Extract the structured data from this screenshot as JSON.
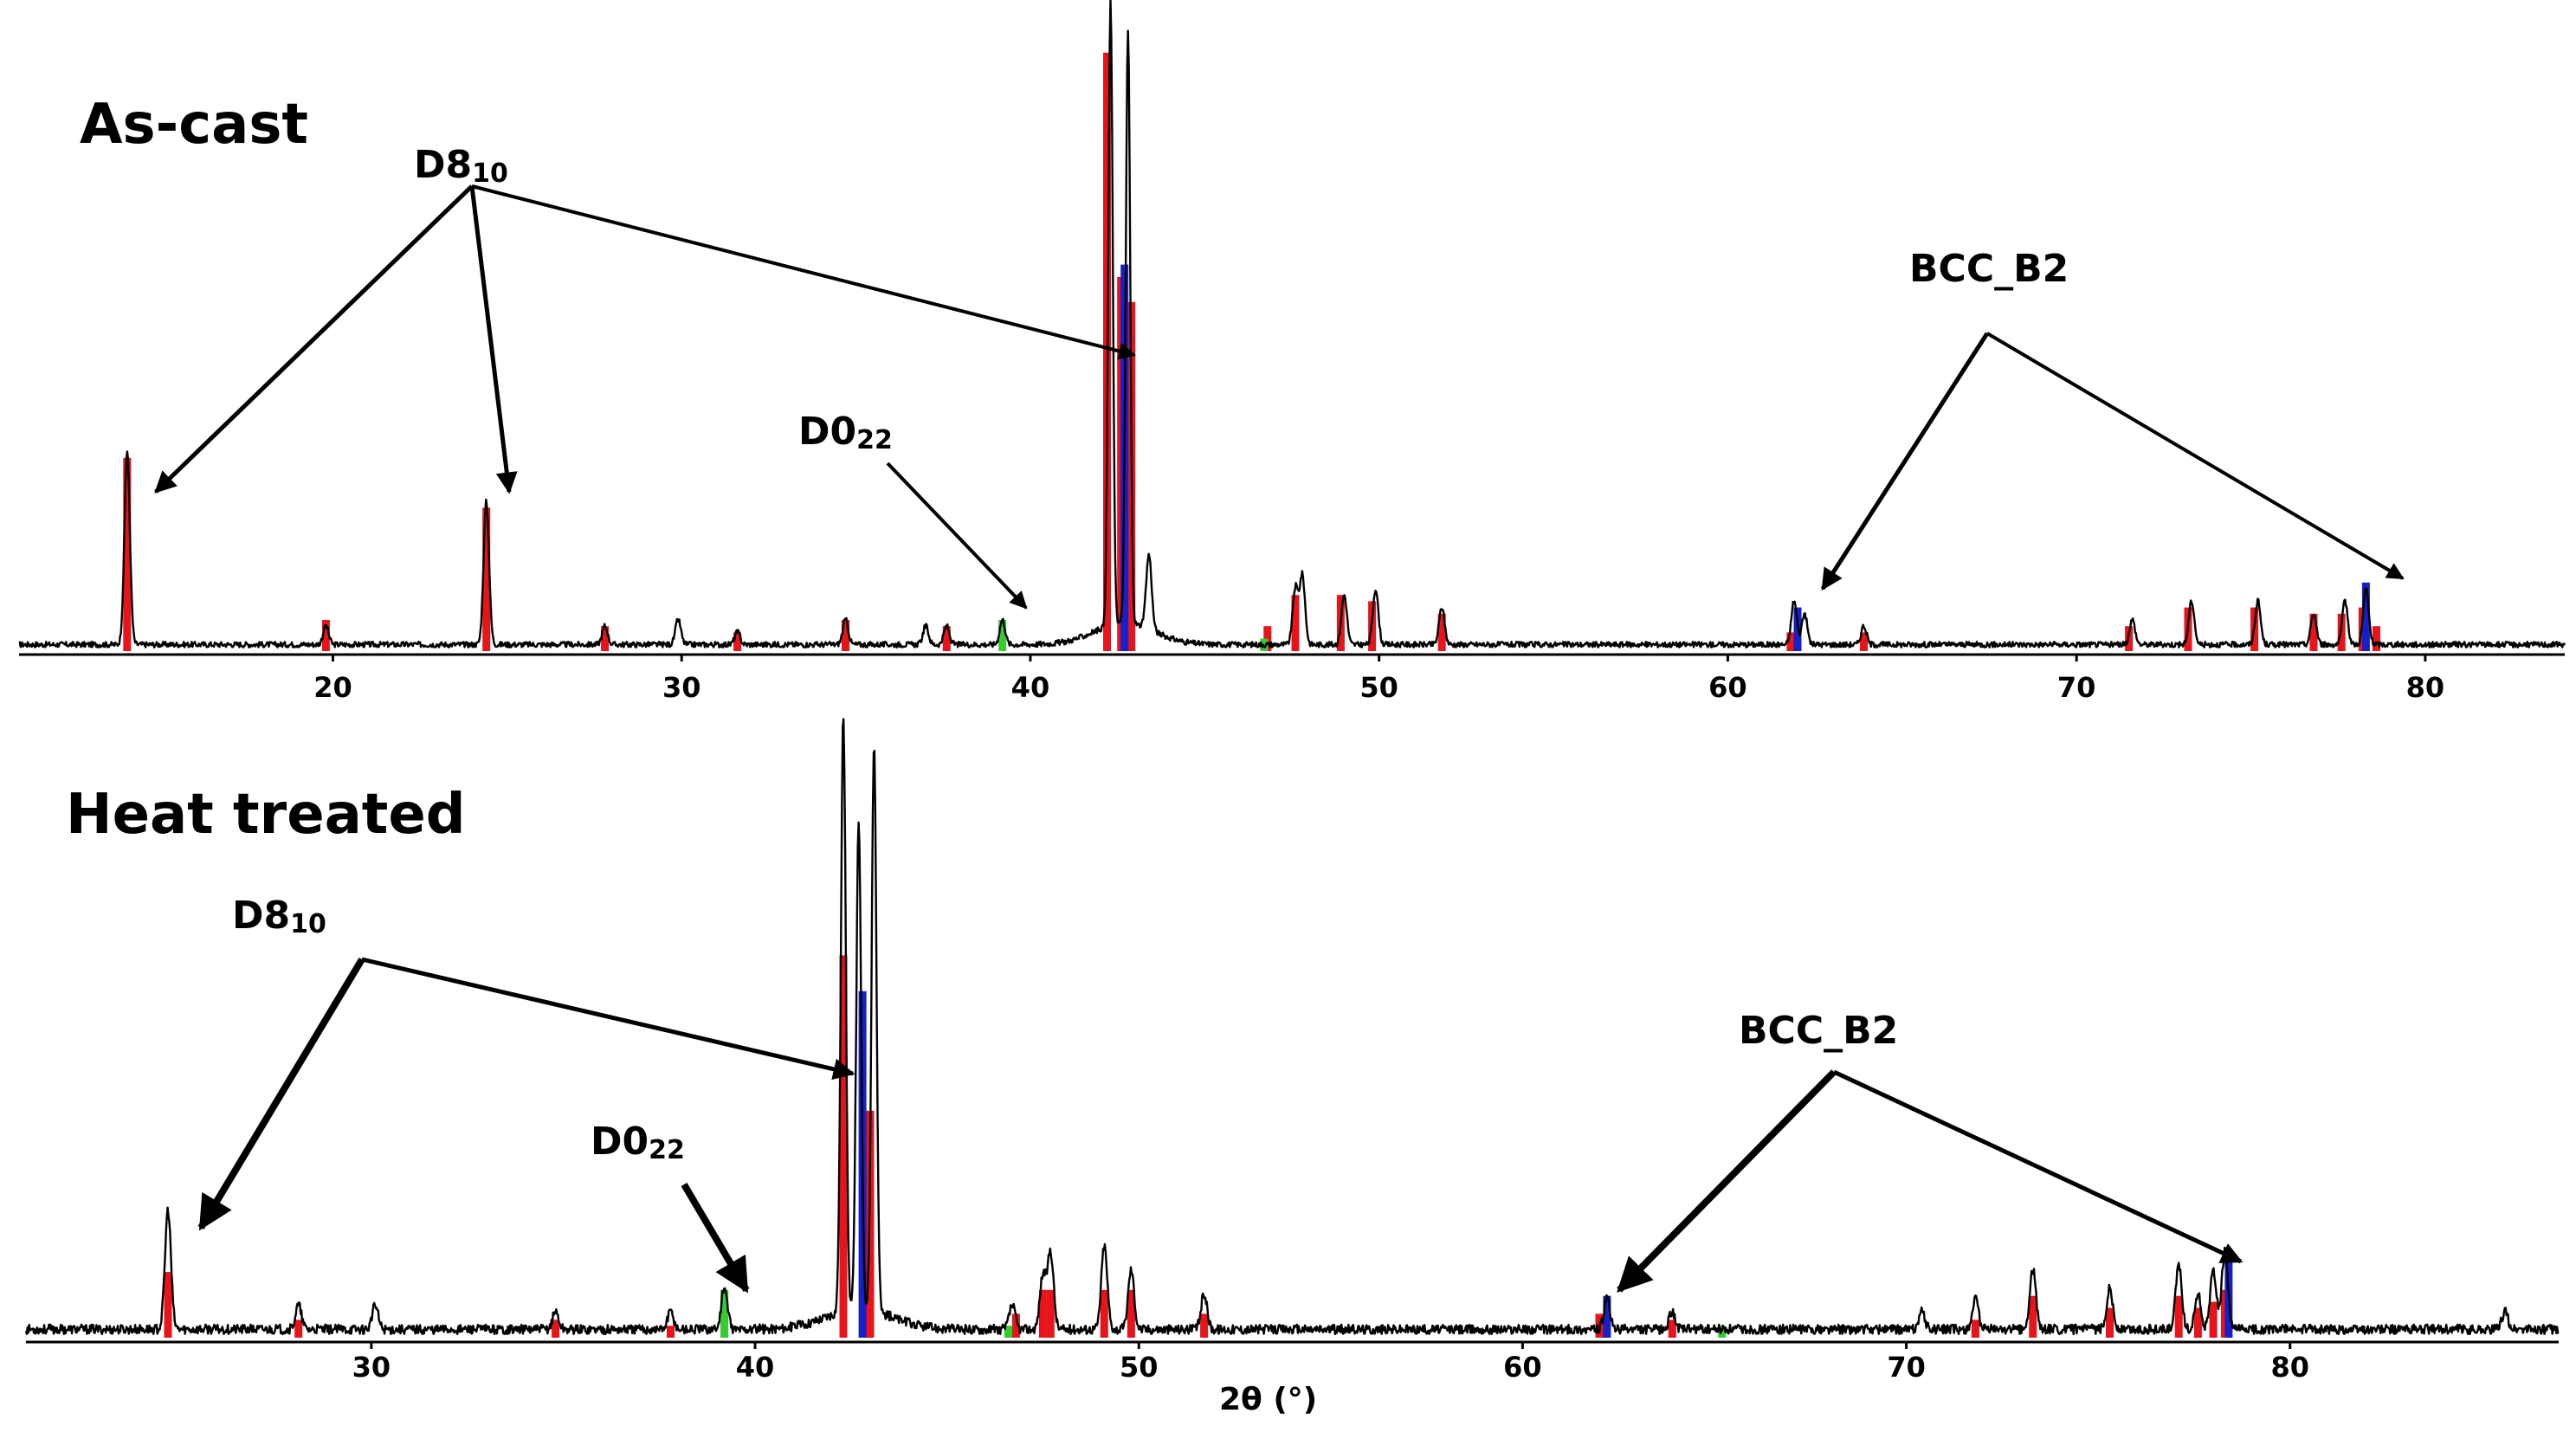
{
  "colors": {
    "trace": "#000000",
    "d810": "#e8141b",
    "bcc_b2": "#1520c8",
    "d022": "#33cc33"
  },
  "chart_data": [
    {
      "type": "line",
      "title": "As-cast",
      "xlabel": "",
      "xlim": [
        11,
        84
      ],
      "xticks": [
        20,
        30,
        40,
        50,
        60,
        70,
        80
      ],
      "ylim": [
        0,
        100
      ],
      "trace_peaks": [
        [
          14.1,
          31
        ],
        [
          19.8,
          3
        ],
        [
          24.4,
          23
        ],
        [
          27.8,
          3
        ],
        [
          29.9,
          4
        ],
        [
          31.6,
          2
        ],
        [
          34.7,
          4
        ],
        [
          37.0,
          3
        ],
        [
          37.6,
          3
        ],
        [
          39.2,
          4
        ],
        [
          42.3,
          100
        ],
        [
          42.8,
          95
        ],
        [
          43.4,
          12
        ],
        [
          47.6,
          9
        ],
        [
          47.8,
          11
        ],
        [
          49.0,
          8
        ],
        [
          49.9,
          9
        ],
        [
          51.8,
          6
        ],
        [
          61.9,
          7
        ],
        [
          62.2,
          5
        ],
        [
          63.9,
          3
        ],
        [
          71.6,
          4
        ],
        [
          73.3,
          7
        ],
        [
          75.2,
          7
        ],
        [
          76.8,
          5
        ],
        [
          77.7,
          7
        ],
        [
          78.3,
          9
        ]
      ],
      "sticks": {
        "D8_10": [
          [
            14.1,
            31
          ],
          [
            19.8,
            5
          ],
          [
            24.4,
            23
          ],
          [
            27.8,
            4
          ],
          [
            31.6,
            3
          ],
          [
            34.7,
            5
          ],
          [
            37.6,
            4
          ],
          [
            42.2,
            96
          ],
          [
            42.6,
            60
          ],
          [
            42.9,
            56
          ],
          [
            46.8,
            4
          ],
          [
            47.6,
            9
          ],
          [
            48.9,
            9
          ],
          [
            49.8,
            8
          ],
          [
            51.8,
            6
          ],
          [
            61.8,
            3
          ],
          [
            63.9,
            3
          ],
          [
            71.5,
            4
          ],
          [
            73.2,
            7
          ],
          [
            75.1,
            7
          ],
          [
            76.8,
            6
          ],
          [
            77.6,
            6
          ],
          [
            78.2,
            7
          ],
          [
            78.6,
            4
          ]
        ],
        "BCC_B2": [
          [
            42.7,
            62
          ],
          [
            62.0,
            7
          ],
          [
            78.3,
            11
          ]
        ],
        "D0_22": [
          [
            39.2,
            5
          ],
          [
            46.7,
            2
          ]
        ]
      },
      "annotations": [
        "D8",
        "10",
        "D0",
        "22",
        "BCC_B2"
      ]
    },
    {
      "type": "line",
      "title": "Heat treated",
      "xlabel": "2θ (°)",
      "xlim": [
        21,
        87
      ],
      "xticks": [
        30,
        40,
        50,
        60,
        70,
        80
      ],
      "ylim": [
        0,
        100
      ],
      "trace_peaks": [
        [
          24.7,
          20
        ],
        [
          28.1,
          4
        ],
        [
          30.1,
          4
        ],
        [
          34.8,
          3
        ],
        [
          37.8,
          3
        ],
        [
          39.2,
          7
        ],
        [
          42.3,
          100
        ],
        [
          42.7,
          82
        ],
        [
          43.1,
          95
        ],
        [
          46.7,
          4
        ],
        [
          47.5,
          9
        ],
        [
          47.7,
          13
        ],
        [
          49.1,
          14
        ],
        [
          49.8,
          10
        ],
        [
          51.7,
          6
        ],
        [
          62.2,
          5
        ],
        [
          63.9,
          3
        ],
        [
          70.4,
          3
        ],
        [
          71.8,
          5
        ],
        [
          73.3,
          10
        ],
        [
          75.3,
          7
        ],
        [
          77.1,
          11
        ],
        [
          77.6,
          6
        ],
        [
          78.0,
          10
        ],
        [
          78.3,
          13
        ],
        [
          85.6,
          3
        ]
      ],
      "sticks": {
        "D8_10": [
          [
            24.7,
            11
          ],
          [
            28.1,
            3
          ],
          [
            34.8,
            3
          ],
          [
            37.8,
            2
          ],
          [
            42.3,
            64
          ],
          [
            43.0,
            38
          ],
          [
            46.8,
            4
          ],
          [
            47.5,
            8
          ],
          [
            47.7,
            8
          ],
          [
            49.1,
            8
          ],
          [
            49.8,
            8
          ],
          [
            51.7,
            4
          ],
          [
            62.0,
            4
          ],
          [
            63.9,
            3
          ],
          [
            71.8,
            3
          ],
          [
            73.3,
            7
          ],
          [
            75.3,
            5
          ],
          [
            77.1,
            7
          ],
          [
            77.6,
            5
          ],
          [
            78.0,
            6
          ],
          [
            78.3,
            8
          ]
        ],
        "BCC_B2": [
          [
            42.8,
            58
          ],
          [
            62.2,
            7
          ],
          [
            78.4,
            13
          ]
        ],
        "D0_22": [
          [
            39.2,
            8
          ],
          [
            46.6,
            2
          ],
          [
            65.2,
            2
          ]
        ]
      },
      "annotations": [
        "D8",
        "10",
        "D0",
        "22",
        "BCC_B2"
      ]
    }
  ],
  "labels": {
    "top_title": "As-cast",
    "bottom_title": "Heat treated",
    "d8_main": "D8",
    "d8_sub": "10",
    "d0_main": "D0",
    "d0_sub": "22",
    "bcc": "BCC_B2",
    "xlabel": "2θ (°)"
  }
}
